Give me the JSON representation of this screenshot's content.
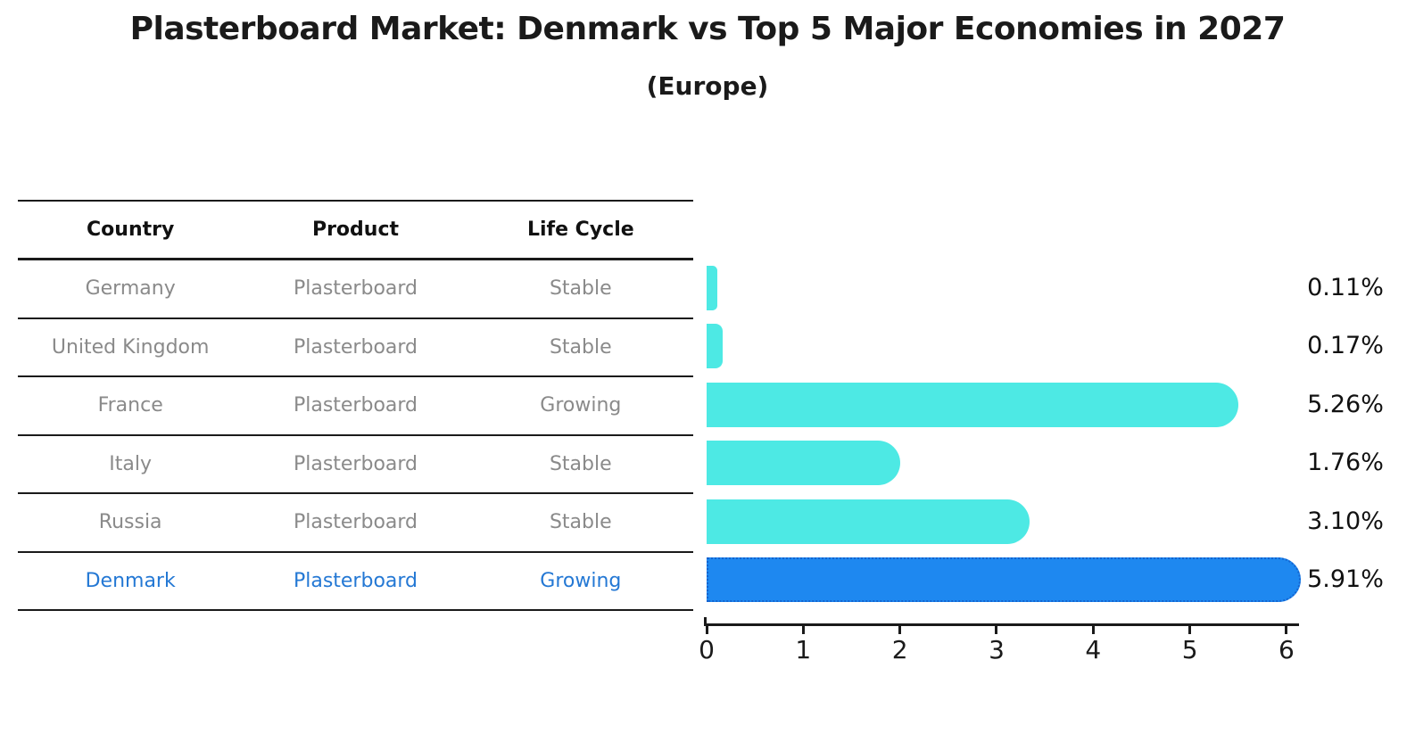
{
  "title": "Plasterboard Market: Denmark vs Top 5 Major Economies in 2027",
  "subtitle": "(Europe)",
  "table": {
    "headers": [
      "Country",
      "Product",
      "Life Cycle"
    ],
    "rows": [
      {
        "country": "Germany",
        "product": "Plasterboard",
        "life_cycle": "Stable",
        "highlight": false
      },
      {
        "country": "United Kingdom",
        "product": "Plasterboard",
        "life_cycle": "Stable",
        "highlight": false
      },
      {
        "country": "France",
        "product": "Plasterboard",
        "life_cycle": "Growing",
        "highlight": false
      },
      {
        "country": "Italy",
        "product": "Plasterboard",
        "life_cycle": "Stable",
        "highlight": false
      },
      {
        "country": "Russia",
        "product": "Plasterboard",
        "life_cycle": "Stable",
        "highlight": false
      },
      {
        "country": "Denmark",
        "product": "Plasterboard",
        "life_cycle": "Growing",
        "highlight": true
      }
    ]
  },
  "chart_data": {
    "type": "bar",
    "orientation": "horizontal",
    "title": "Plasterboard Market: Denmark vs Top 5 Major Economies in 2027",
    "subtitle": "(Europe)",
    "categories": [
      "Germany",
      "United Kingdom",
      "France",
      "Italy",
      "Russia",
      "Denmark"
    ],
    "values": [
      0.11,
      0.17,
      5.26,
      1.76,
      3.1,
      5.91
    ],
    "value_labels": [
      "0.11%",
      "0.17%",
      "5.26%",
      "1.76%",
      "3.10%",
      "5.91%"
    ],
    "x_ticks": [
      "0",
      "1",
      "2",
      "3",
      "4",
      "5",
      "6"
    ],
    "xlim": [
      0,
      6.2
    ],
    "grid": false,
    "legend": false,
    "highlight_index": 5,
    "unit_suffix": "%"
  },
  "colors": {
    "bar_default": "#4de9e4",
    "bar_highlight": "#1e88f0",
    "bar_highlight_border": "#1463cf",
    "row_text": "#8a8a8a",
    "highlight_text": "#2478d4",
    "ink": "#1a1a1a"
  }
}
